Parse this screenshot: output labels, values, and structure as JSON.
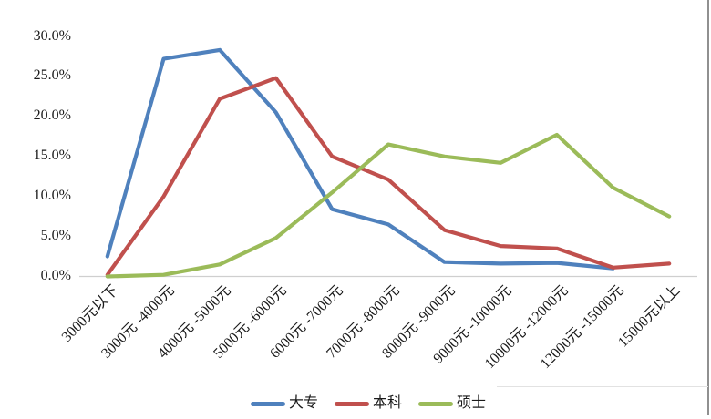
{
  "chart_data": {
    "type": "line",
    "categories": [
      "3000元以下",
      "3000元 -4000元",
      "4000元 -5000元",
      "5000元 -6000元",
      "6000元 -7000元",
      "7000元 -8000元",
      "8000元 -9000元",
      "9000元 -10000元",
      "10000元 -12000元",
      "12000元 -15000元",
      "15000元以上"
    ],
    "series": [
      {
        "name": "大专",
        "color": "#4F81BD",
        "values": [
          2.5,
          27.2,
          28.3,
          20.5,
          8.4,
          6.5,
          1.8,
          1.6,
          1.7,
          1.0,
          null
        ]
      },
      {
        "name": "本科",
        "color": "#C0504D",
        "values": [
          0.2,
          10.0,
          22.2,
          24.8,
          15.0,
          12.1,
          5.8,
          3.8,
          3.5,
          1.1,
          1.6
        ]
      },
      {
        "name": "硕士",
        "color": "#9BBB59",
        "values": [
          0.0,
          0.2,
          1.5,
          4.8,
          10.5,
          16.5,
          15.0,
          14.2,
          17.7,
          11.1,
          7.5
        ]
      }
    ],
    "ylim": [
      0,
      30
    ],
    "ytick_step": 5,
    "ytick_labels": [
      "0.0%",
      "5.0%",
      "10.0%",
      "15.0%",
      "20.0%",
      "25.0%",
      "30.0%"
    ],
    "grid": false,
    "legend_position": "bottom"
  },
  "colors": {
    "axis": "#CFCFCF",
    "text": "#1A1A1A",
    "background": "#FFFFFF",
    "right_edge_line": "#909090",
    "artifact_line": "#E2E2E2"
  }
}
